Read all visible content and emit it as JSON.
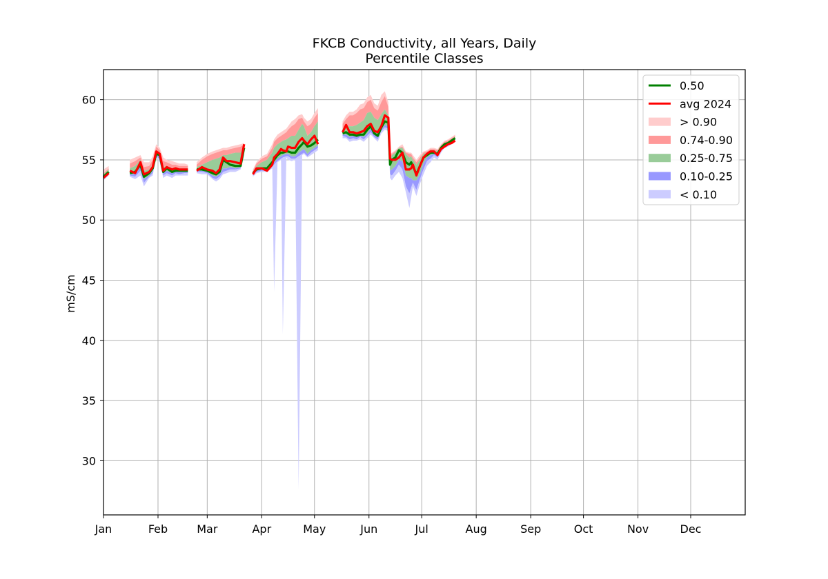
{
  "chart_data": {
    "type": "area",
    "title": "FKCB Conductivity, all Years, Daily",
    "subtitle": "Percentile Classes",
    "xlabel": "",
    "ylabel": "mS/cm",
    "xlim": [
      1,
      366
    ],
    "ylim": [
      25.5,
      62.5
    ],
    "grid": true,
    "legend_position": "top-right",
    "x_tick_labels": [
      "Jan",
      "Feb",
      "Mar",
      "Apr",
      "May",
      "Jun",
      "Jul",
      "Aug",
      "Sep",
      "Oct",
      "Nov",
      "Dec"
    ],
    "x_tick_days": [
      1,
      32,
      60,
      91,
      121,
      152,
      182,
      213,
      244,
      274,
      305,
      335
    ],
    "y_ticks": [
      30,
      35,
      40,
      45,
      50,
      55,
      60
    ],
    "colors": {
      "median": "#008000",
      "avg": "#ff0000",
      "above90": "#ffcccc",
      "p74_90": "#ff9999",
      "p25_75": "#99cc99",
      "p10_25": "#9999ff",
      "below10": "#ccccff"
    },
    "legend": [
      {
        "key": "median",
        "label": "0.50",
        "kind": "line"
      },
      {
        "key": "avg",
        "label": "avg 2024",
        "kind": "line"
      },
      {
        "key": "above90",
        "label": "> 0.90",
        "kind": "patch"
      },
      {
        "key": "p74_90",
        "label": "0.74-0.90",
        "kind": "patch"
      },
      {
        "key": "p25_75",
        "label": "0.25-0.75",
        "kind": "patch"
      },
      {
        "key": "p10_25",
        "label": "0.10-0.25",
        "kind": "patch"
      },
      {
        "key": "below10",
        "label": "< 0.10",
        "kind": "patch"
      }
    ],
    "segments": [
      {
        "days": [
          1,
          4
        ],
        "min": [
          53.3,
          53.7
        ],
        "p10": [
          53.5,
          53.8
        ],
        "p25": [
          53.6,
          53.9
        ],
        "p50": [
          53.6,
          54.0
        ],
        "p75": [
          53.8,
          54.2
        ],
        "p90": [
          53.9,
          54.3
        ],
        "max": [
          54.2,
          54.5
        ],
        "avg": [
          53.5,
          53.9
        ]
      },
      {
        "days": [
          16,
          19,
          22,
          24,
          27,
          29,
          31,
          33,
          35,
          37,
          40,
          42,
          44,
          47,
          49
        ],
        "min": [
          53.6,
          53.4,
          53.7,
          52.8,
          53.5,
          53.7,
          55.2,
          54.8,
          53.5,
          53.7,
          53.5,
          53.7,
          53.7,
          53.7,
          53.7
        ],
        "p10": [
          53.7,
          53.6,
          54.1,
          53.1,
          53.6,
          53.9,
          55.3,
          55.1,
          53.7,
          53.9,
          53.7,
          53.9,
          53.8,
          53.9,
          53.9
        ],
        "p25": [
          53.8,
          53.8,
          54.4,
          53.4,
          53.7,
          54.1,
          55.4,
          55.3,
          53.9,
          54.1,
          53.9,
          54.0,
          54.0,
          54.0,
          54.0
        ],
        "p50": [
          53.9,
          54.0,
          54.6,
          53.6,
          53.9,
          54.3,
          55.5,
          55.4,
          54.0,
          54.3,
          54.0,
          54.1,
          54.1,
          54.1,
          54.1
        ],
        "p75": [
          54.3,
          54.5,
          55.0,
          54.1,
          54.2,
          54.6,
          55.8,
          55.6,
          54.4,
          54.5,
          54.3,
          54.4,
          54.3,
          54.3,
          54.3
        ],
        "p90": [
          54.7,
          54.9,
          55.2,
          54.4,
          54.5,
          55.0,
          56.1,
          55.8,
          54.9,
          54.8,
          54.6,
          54.6,
          54.5,
          54.5,
          54.5
        ],
        "max": [
          55.0,
          55.2,
          55.4,
          54.8,
          54.8,
          55.3,
          56.3,
          56.0,
          55.2,
          55.0,
          54.9,
          54.8,
          54.7,
          54.7,
          54.6
        ],
        "avg": [
          54.1,
          53.9,
          54.8,
          53.8,
          54.0,
          54.4,
          55.7,
          55.5,
          54.1,
          54.4,
          54.2,
          54.3,
          54.2,
          54.2,
          54.2
        ]
      },
      {
        "days": [
          54,
          57,
          60,
          63,
          65,
          67,
          69,
          71,
          73,
          76,
          79,
          81
        ],
        "min": [
          53.9,
          53.8,
          53.8,
          53.4,
          53.2,
          53.4,
          53.8,
          53.9,
          54.0,
          54.0,
          54.2,
          55.4
        ],
        "p10": [
          54.0,
          54.0,
          53.9,
          53.5,
          53.4,
          53.6,
          54.0,
          54.1,
          54.2,
          54.2,
          54.3,
          55.6
        ],
        "p25": [
          54.1,
          54.1,
          54.0,
          53.7,
          53.6,
          53.8,
          54.3,
          54.3,
          54.4,
          54.3,
          54.4,
          55.8
        ],
        "p50": [
          54.2,
          54.2,
          54.1,
          53.9,
          53.8,
          54.0,
          55.0,
          54.8,
          54.6,
          54.5,
          54.5,
          56.0
        ],
        "p75": [
          54.4,
          54.6,
          54.8,
          55.0,
          55.1,
          55.2,
          55.4,
          55.4,
          55.5,
          55.6,
          55.6,
          56.2
        ],
        "p90": [
          54.6,
          55.0,
          55.3,
          55.5,
          55.6,
          55.7,
          55.8,
          55.8,
          55.9,
          56.0,
          56.1,
          56.3
        ],
        "max": [
          54.8,
          55.2,
          55.5,
          55.7,
          55.8,
          55.9,
          56.0,
          56.0,
          56.1,
          56.2,
          56.3,
          56.4
        ],
        "avg": [
          54.1,
          54.4,
          54.2,
          54.1,
          53.9,
          54.2,
          55.2,
          54.9,
          54.9,
          54.8,
          54.7,
          56.3
        ]
      },
      {
        "days": [
          86,
          88,
          91,
          94,
          97,
          98,
          100,
          102,
          103,
          105,
          106,
          108,
          110,
          112,
          114,
          115,
          117,
          119,
          121,
          123
        ],
        "min": [
          53.6,
          53.9,
          54.0,
          54.0,
          54.3,
          44.0,
          54.8,
          55.0,
          40.5,
          55.2,
          55.0,
          54.9,
          55.0,
          27.6,
          55.4,
          55.5,
          55.2,
          55.4,
          55.6,
          55.8
        ],
        "p10": [
          53.7,
          54.0,
          54.1,
          54.1,
          54.5,
          54.6,
          54.9,
          55.1,
          55.2,
          55.3,
          55.3,
          55.1,
          55.1,
          55.3,
          55.5,
          55.6,
          55.3,
          55.6,
          55.8,
          56.0
        ],
        "p25": [
          53.8,
          54.1,
          54.2,
          54.2,
          54.6,
          54.8,
          55.1,
          55.3,
          55.4,
          55.5,
          55.5,
          55.3,
          55.3,
          55.6,
          55.8,
          55.9,
          55.5,
          55.8,
          56.0,
          56.2
        ],
        "p50": [
          53.9,
          54.2,
          54.3,
          54.3,
          54.8,
          55.0,
          55.4,
          55.6,
          55.6,
          55.7,
          55.7,
          55.6,
          55.6,
          56.0,
          56.3,
          56.5,
          56.1,
          56.2,
          56.4,
          56.7
        ],
        "p75": [
          54.0,
          54.5,
          54.8,
          55.0,
          55.6,
          56.0,
          56.3,
          56.5,
          56.6,
          56.7,
          56.8,
          57.0,
          57.0,
          57.5,
          58.0,
          57.8,
          57.0,
          57.3,
          57.8,
          58.2
        ],
        "p90": [
          54.1,
          54.7,
          55.1,
          55.3,
          56.0,
          56.5,
          56.8,
          57.0,
          57.1,
          57.3,
          57.5,
          57.8,
          58.0,
          58.4,
          58.5,
          58.2,
          57.8,
          58.0,
          58.5,
          58.9
        ],
        "max": [
          54.2,
          54.8,
          55.3,
          55.5,
          56.3,
          56.7,
          57.1,
          57.3,
          57.4,
          57.6,
          57.8,
          58.2,
          58.4,
          58.7,
          58.8,
          58.5,
          58.2,
          58.4,
          58.9,
          59.3
        ],
        "avg": [
          53.8,
          54.3,
          54.3,
          54.1,
          54.6,
          55.2,
          55.5,
          55.9,
          55.8,
          55.7,
          56.1,
          56.0,
          56.0,
          56.5,
          56.8,
          56.6,
          56.3,
          56.7,
          57.0,
          56.3
        ]
      },
      {
        "days": [
          137,
          139,
          141,
          143,
          145,
          147,
          149,
          151,
          153,
          155,
          157,
          159,
          161,
          163,
          164,
          165,
          167,
          169,
          171,
          173,
          175,
          176,
          177,
          179,
          181,
          183,
          185,
          187,
          189,
          191,
          193,
          195,
          197,
          199,
          201
        ],
        "min": [
          56.8,
          56.8,
          56.5,
          56.6,
          56.6,
          56.7,
          56.5,
          56.8,
          57.1,
          56.8,
          56.5,
          57.2,
          57.5,
          57.4,
          53.5,
          53.3,
          53.7,
          54.0,
          53.5,
          52.3,
          51.0,
          51.9,
          52.8,
          52.0,
          53.0,
          53.8,
          54.5,
          54.8,
          55.2,
          55.0,
          55.6,
          56.0,
          56.1,
          56.3,
          56.6
        ],
        "p10": [
          57.0,
          56.9,
          56.7,
          56.8,
          56.7,
          56.9,
          56.7,
          57.0,
          57.3,
          56.9,
          56.7,
          57.4,
          57.7,
          57.6,
          53.8,
          53.7,
          54.1,
          54.6,
          54.2,
          52.8,
          52.2,
          52.7,
          53.1,
          52.5,
          53.4,
          54.2,
          54.9,
          55.1,
          55.4,
          55.2,
          55.8,
          56.1,
          56.2,
          56.4,
          56.7
        ],
        "p25": [
          57.1,
          57.1,
          56.9,
          57.0,
          56.9,
          57.0,
          56.9,
          57.2,
          57.6,
          57.1,
          56.9,
          57.5,
          57.9,
          57.8,
          54.1,
          54.2,
          54.5,
          55.0,
          54.9,
          53.7,
          53.5,
          53.5,
          53.3,
          53.3,
          53.8,
          54.7,
          55.2,
          55.4,
          55.5,
          55.4,
          55.9,
          56.2,
          56.3,
          56.5,
          56.7
        ],
        "p50": [
          57.2,
          57.3,
          57.1,
          57.1,
          57.0,
          57.1,
          57.1,
          57.5,
          57.8,
          57.2,
          57.0,
          57.7,
          58.2,
          58.1,
          54.6,
          55.0,
          55.2,
          55.8,
          55.6,
          54.8,
          54.6,
          54.8,
          54.5,
          53.8,
          54.5,
          55.2,
          55.4,
          55.6,
          55.6,
          55.5,
          56.0,
          56.3,
          56.4,
          56.6,
          56.8
        ],
        "p75": [
          57.6,
          57.8,
          57.8,
          57.8,
          57.9,
          58.1,
          58.3,
          58.9,
          59.0,
          58.5,
          58.3,
          58.8,
          59.2,
          58.7,
          55.0,
          55.4,
          55.6,
          56.0,
          56.0,
          55.5,
          55.2,
          55.3,
          55.0,
          54.6,
          55.0,
          55.5,
          55.6,
          55.8,
          55.8,
          55.7,
          56.1,
          56.4,
          56.5,
          56.7,
          56.9
        ],
        "p90": [
          58.0,
          58.4,
          58.7,
          58.7,
          58.9,
          59.2,
          59.3,
          59.8,
          60.0,
          59.3,
          59.1,
          59.8,
          60.3,
          59.4,
          55.3,
          55.5,
          55.7,
          56.0,
          56.1,
          55.6,
          55.5,
          55.5,
          55.2,
          54.8,
          55.2,
          55.6,
          55.7,
          55.9,
          55.9,
          55.8,
          56.2,
          56.5,
          56.6,
          56.8,
          57.0
        ],
        "max": [
          58.2,
          58.7,
          59.0,
          59.0,
          59.2,
          59.6,
          59.7,
          60.2,
          60.4,
          59.7,
          59.5,
          60.4,
          60.7,
          59.8,
          55.5,
          55.6,
          55.8,
          56.1,
          56.3,
          55.7,
          55.6,
          55.6,
          55.4,
          55.0,
          55.4,
          55.7,
          55.8,
          56.0,
          56.0,
          55.9,
          56.3,
          56.6,
          56.7,
          56.9,
          57.1
        ],
        "avg": [
          57.3,
          57.9,
          57.3,
          57.3,
          57.2,
          57.3,
          57.4,
          57.8,
          58.0,
          57.4,
          57.3,
          57.8,
          58.7,
          58.5,
          55.1,
          55.0,
          55.0,
          55.2,
          55.6,
          54.2,
          54.2,
          54.3,
          54.6,
          53.7,
          54.5,
          55.2,
          55.5,
          55.7,
          55.7,
          55.4,
          55.9,
          56.1,
          56.3,
          56.4,
          56.6
        ]
      }
    ]
  }
}
